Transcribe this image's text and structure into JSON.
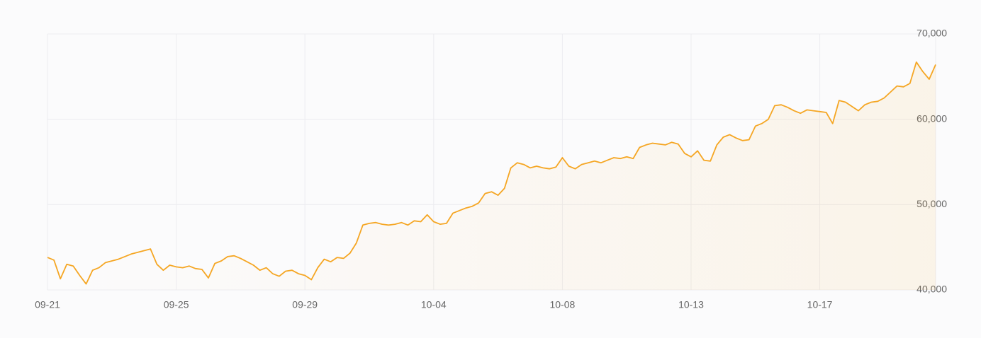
{
  "chart_data": {
    "type": "line",
    "categories": [
      "09-21",
      null,
      null,
      null,
      null,
      null,
      null,
      null,
      null,
      null,
      null,
      null,
      null,
      null,
      null,
      null,
      null,
      null,
      null,
      null,
      "09-25",
      null,
      null,
      null,
      null,
      null,
      null,
      null,
      null,
      null,
      null,
      null,
      null,
      null,
      null,
      null,
      null,
      null,
      null,
      null,
      "09-29",
      null,
      null,
      null,
      null,
      null,
      null,
      null,
      null,
      null,
      null,
      null,
      null,
      null,
      null,
      null,
      null,
      null,
      null,
      null,
      "10-04",
      null,
      null,
      null,
      null,
      null,
      null,
      null,
      null,
      null,
      null,
      null,
      null,
      null,
      null,
      null,
      null,
      null,
      null,
      null,
      "10-08",
      null,
      null,
      null,
      null,
      null,
      null,
      null,
      null,
      null,
      null,
      null,
      null,
      null,
      null,
      null,
      null,
      null,
      null,
      null,
      "10-13",
      null,
      null,
      null,
      null,
      null,
      null,
      null,
      null,
      null,
      null,
      null,
      null,
      null,
      null,
      null,
      null,
      null,
      null,
      null,
      "10-17",
      null,
      null,
      null,
      null,
      null,
      null,
      null,
      null,
      null,
      null,
      null,
      null,
      null,
      null,
      null,
      null,
      null,
      null
    ],
    "values": [
      43800,
      43500,
      41300,
      43000,
      42800,
      41700,
      40700,
      42300,
      42600,
      43200,
      43400,
      43600,
      43900,
      44200,
      44400,
      44600,
      44800,
      43000,
      42300,
      42900,
      42700,
      42600,
      42800,
      42500,
      42400,
      41400,
      43100,
      43400,
      43900,
      44000,
      43700,
      43300,
      42900,
      42300,
      42600,
      41900,
      41600,
      42200,
      42300,
      41900,
      41700,
      41200,
      42600,
      43600,
      43300,
      43800,
      43700,
      44300,
      45500,
      47600,
      47800,
      47900,
      47700,
      47600,
      47700,
      47900,
      47600,
      48100,
      48000,
      48800,
      48000,
      47700,
      47800,
      49000,
      49300,
      49600,
      49800,
      50200,
      51300,
      51500,
      51100,
      51900,
      54300,
      54900,
      54700,
      54300,
      54500,
      54300,
      54200,
      54400,
      55500,
      54500,
      54200,
      54700,
      54900,
      55100,
      54900,
      55200,
      55500,
      55400,
      55600,
      55400,
      56700,
      57000,
      57200,
      57100,
      57000,
      57300,
      57100,
      56000,
      55600,
      56300,
      55200,
      55100,
      57000,
      57900,
      58200,
      57800,
      57500,
      57600,
      59200,
      59500,
      60000,
      61600,
      61700,
      61400,
      61000,
      60700,
      61100,
      61000,
      60900,
      60800,
      59500,
      62200,
      62000,
      61500,
      61000,
      61700,
      62000,
      62100,
      62500,
      63200,
      63900,
      63800,
      64200,
      66700,
      65600,
      64700,
      66400
    ],
    "color": "#f5a623",
    "ylim": [
      40000,
      70000
    ],
    "yticks": [
      {
        "value": 40000,
        "label": "40,000"
      },
      {
        "value": 50000,
        "label": "50,000"
      },
      {
        "value": 60000,
        "label": "60,000"
      },
      {
        "value": 70000,
        "label": "70,000"
      }
    ],
    "y_axis_side": "right",
    "grid": true
  }
}
